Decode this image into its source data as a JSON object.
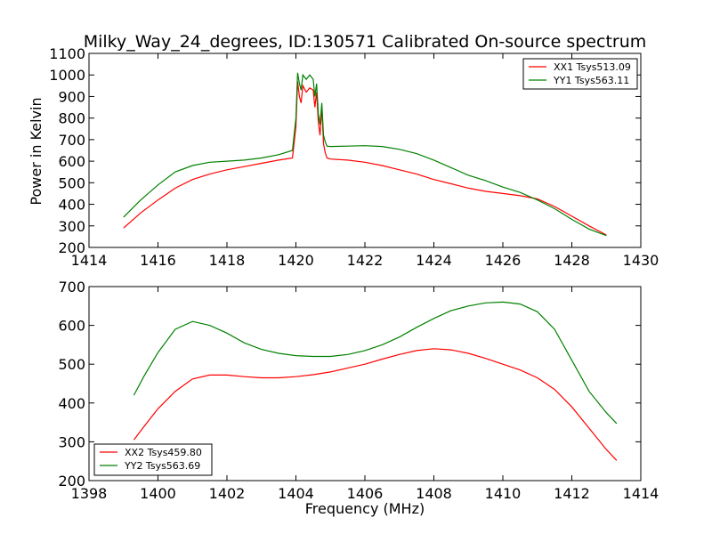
{
  "chart_data": [
    {
      "type": "line",
      "title": "Milky_Way_24_degrees, ID:130571 Calibrated On-source spectrum",
      "xlabel": "",
      "ylabel": "Power in Kelvin",
      "xlim": [
        1414,
        1430
      ],
      "ylim": [
        200,
        1100
      ],
      "xticks": [
        1414,
        1416,
        1418,
        1420,
        1422,
        1424,
        1426,
        1428,
        1430
      ],
      "yticks": [
        200,
        300,
        400,
        500,
        600,
        700,
        800,
        900,
        1000,
        1100
      ],
      "legend": "top-right",
      "grid": false,
      "series": [
        {
          "name": "XX1 Tsys513.09",
          "color": "#ff0000",
          "x": [
            1415.0,
            1415.5,
            1416.0,
            1416.5,
            1417.0,
            1417.5,
            1418.0,
            1418.5,
            1419.0,
            1419.5,
            1419.9,
            1420.0,
            1420.05,
            1420.1,
            1420.15,
            1420.2,
            1420.3,
            1420.4,
            1420.5,
            1420.55,
            1420.6,
            1420.65,
            1420.7,
            1420.75,
            1420.8,
            1420.85,
            1420.9,
            1421.0,
            1421.5,
            1422.0,
            1422.5,
            1423.0,
            1423.5,
            1424.0,
            1424.5,
            1425.0,
            1425.5,
            1426.0,
            1426.5,
            1427.0,
            1427.5,
            1428.0,
            1428.5,
            1429.0
          ],
          "y": [
            290,
            360,
            420,
            475,
            515,
            540,
            560,
            575,
            590,
            605,
            615,
            760,
            970,
            900,
            870,
            950,
            920,
            940,
            930,
            850,
            920,
            780,
            720,
            850,
            680,
            640,
            615,
            610,
            605,
            595,
            580,
            560,
            540,
            515,
            495,
            475,
            460,
            450,
            440,
            425,
            390,
            345,
            300,
            258
          ]
        },
        {
          "name": "YY1 Tsys563.11",
          "color": "#008000",
          "x": [
            1415.0,
            1415.5,
            1416.0,
            1416.5,
            1417.0,
            1417.5,
            1418.0,
            1418.5,
            1419.0,
            1419.5,
            1419.9,
            1420.0,
            1420.05,
            1420.1,
            1420.15,
            1420.2,
            1420.3,
            1420.4,
            1420.5,
            1420.55,
            1420.6,
            1420.65,
            1420.7,
            1420.75,
            1420.8,
            1420.85,
            1420.9,
            1421.0,
            1421.5,
            1422.0,
            1422.5,
            1423.0,
            1423.5,
            1424.0,
            1424.5,
            1425.0,
            1425.5,
            1426.0,
            1426.5,
            1427.0,
            1427.5,
            1428.0,
            1428.5,
            1429.0
          ],
          "y": [
            340,
            420,
            490,
            550,
            580,
            595,
            600,
            605,
            615,
            630,
            650,
            800,
            1010,
            960,
            930,
            1000,
            980,
            1000,
            980,
            900,
            960,
            820,
            770,
            870,
            720,
            690,
            670,
            668,
            670,
            672,
            668,
            655,
            635,
            605,
            570,
            535,
            510,
            480,
            455,
            420,
            380,
            330,
            285,
            255
          ]
        }
      ]
    },
    {
      "type": "line",
      "title": "",
      "xlabel": "Frequency (MHz)",
      "ylabel": "",
      "xlim": [
        1398,
        1414
      ],
      "ylim": [
        200,
        700
      ],
      "xticks": [
        1398,
        1400,
        1402,
        1404,
        1406,
        1408,
        1410,
        1412,
        1414
      ],
      "yticks": [
        200,
        300,
        400,
        500,
        600,
        700
      ],
      "legend": "bottom-left",
      "grid": false,
      "series": [
        {
          "name": "XX2 Tsys459.80",
          "color": "#ff0000",
          "x": [
            1399.3,
            1399.6,
            1400.0,
            1400.5,
            1401.0,
            1401.5,
            1402.0,
            1402.5,
            1403.0,
            1403.5,
            1404.0,
            1404.5,
            1405.0,
            1405.5,
            1406.0,
            1406.5,
            1407.0,
            1407.5,
            1408.0,
            1408.5,
            1409.0,
            1409.5,
            1410.0,
            1410.5,
            1411.0,
            1411.5,
            1412.0,
            1412.5,
            1413.0,
            1413.3
          ],
          "y": [
            305,
            340,
            385,
            430,
            462,
            472,
            472,
            468,
            465,
            465,
            468,
            473,
            480,
            490,
            500,
            513,
            525,
            535,
            540,
            537,
            528,
            515,
            500,
            485,
            465,
            435,
            390,
            335,
            280,
            252
          ]
        },
        {
          "name": "YY2 Tsys563.69",
          "color": "#008000",
          "x": [
            1399.3,
            1399.6,
            1400.0,
            1400.5,
            1401.0,
            1401.5,
            1402.0,
            1402.5,
            1403.0,
            1403.5,
            1404.0,
            1404.5,
            1405.0,
            1405.5,
            1406.0,
            1406.5,
            1407.0,
            1407.5,
            1408.0,
            1408.5,
            1409.0,
            1409.5,
            1410.0,
            1410.5,
            1411.0,
            1411.5,
            1412.0,
            1412.5,
            1413.0,
            1413.3
          ],
          "y": [
            420,
            470,
            530,
            590,
            610,
            600,
            580,
            555,
            538,
            528,
            522,
            520,
            520,
            525,
            535,
            550,
            570,
            595,
            618,
            638,
            650,
            658,
            660,
            655,
            635,
            590,
            510,
            430,
            375,
            347
          ]
        }
      ]
    }
  ]
}
